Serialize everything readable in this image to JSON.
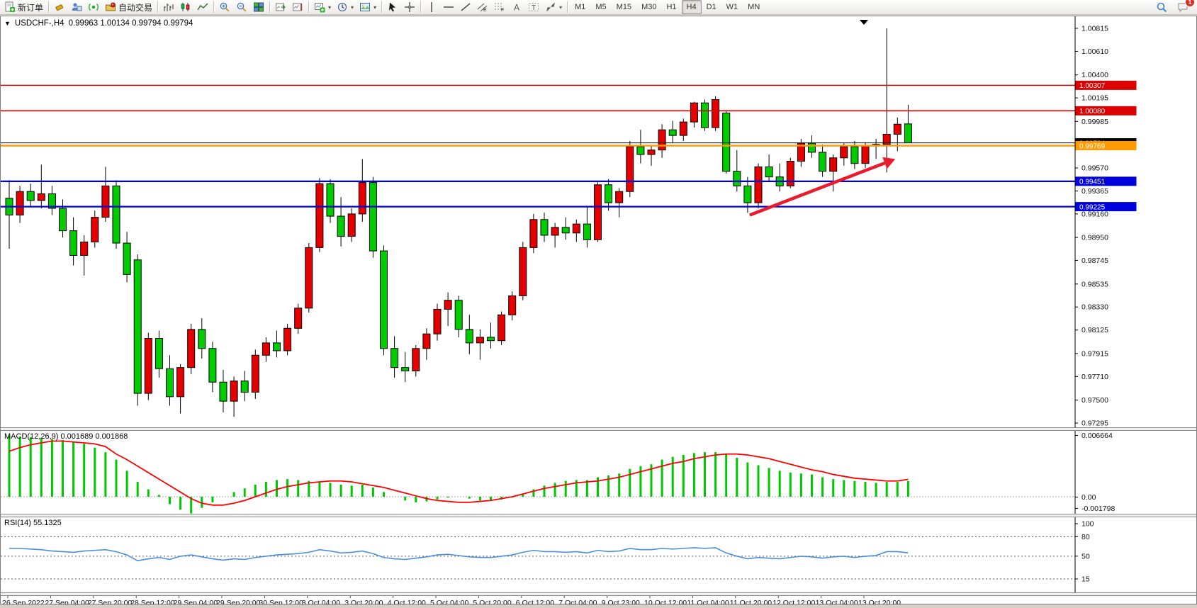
{
  "toolbar": {
    "new_order_label": "新订单",
    "auto_trade_label": "自动交易",
    "timeframes": [
      "M1",
      "M5",
      "M15",
      "M30",
      "H1",
      "H4",
      "D1",
      "W1",
      "MN"
    ],
    "active_timeframe": "H4",
    "chat_badge": "1",
    "groups": [
      {
        "items": [
          {
            "name": "new-order-button",
            "icon": "neworder",
            "label": "新订单"
          }
        ]
      },
      {
        "items": [
          {
            "name": "eraser-button",
            "icon": "eraser"
          },
          {
            "name": "market-watch-button",
            "icon": "person"
          },
          {
            "name": "signals-button",
            "icon": "signal"
          },
          {
            "name": "auto-trade-button",
            "icon": "autotrade",
            "label": "自动交易"
          }
        ]
      },
      {
        "items": [
          {
            "name": "bar-chart-mode-button",
            "icon": "bars"
          },
          {
            "name": "candle-chart-mode-button",
            "icon": "candles"
          },
          {
            "name": "line-chart-mode-button",
            "icon": "line"
          }
        ]
      },
      {
        "items": [
          {
            "name": "zoom-in-button",
            "icon": "zoomin"
          },
          {
            "name": "zoom-out-button",
            "icon": "zoomout"
          },
          {
            "name": "tile-windows-button",
            "icon": "tile"
          }
        ]
      },
      {
        "items": [
          {
            "name": "auto-scroll-button",
            "icon": "scrollend"
          },
          {
            "name": "chart-shift-button",
            "icon": "shift"
          }
        ]
      },
      {
        "items": [
          {
            "name": "new-chart-button",
            "icon": "newchart",
            "dropdown": true
          },
          {
            "name": "periods-button",
            "icon": "clock",
            "dropdown": true
          },
          {
            "name": "templates-button",
            "icon": "template",
            "dropdown": true
          }
        ]
      },
      {
        "items": [
          {
            "name": "cursor-tool-button",
            "icon": "cursor"
          },
          {
            "name": "crosshair-tool-button",
            "icon": "crosshair"
          }
        ]
      },
      {
        "items": [
          {
            "name": "vertical-line-tool",
            "icon": "vline"
          },
          {
            "name": "horizontal-line-tool",
            "icon": "hline"
          },
          {
            "name": "trendline-tool",
            "icon": "tline"
          },
          {
            "name": "equidistant-channel-tool",
            "icon": "channel"
          },
          {
            "name": "fibonacci-tool",
            "icon": "fibo"
          },
          {
            "name": "text-tool",
            "icon": "textA"
          },
          {
            "name": "text-label-tool",
            "icon": "labelT"
          },
          {
            "name": "arrows-tool",
            "icon": "arrows",
            "dropdown": true
          }
        ]
      }
    ]
  },
  "chart_window": {
    "symbol_period": "USDCHF-,H4",
    "ohlc_line": "0.99963 1.00134 0.99794 0.99794",
    "macd_label": "MACD(12,26,9)",
    "macd_value1": "0.001689",
    "macd_value2": "0.001868",
    "rsi_label": "RSI(14)",
    "rsi_value": "55.1325"
  },
  "colors": {
    "bull": "#e50000",
    "bear": "#00cc00",
    "wick": "#000000",
    "macd_hist": "#00c800",
    "macd_signal": "#ff0000",
    "rsi_line": "#4a8fdd",
    "line_red": "#dd0000",
    "line_blue": "#0000dd",
    "line_orange": "#ff9900",
    "line_black": "#000000",
    "arrow": "#e81c2d"
  },
  "chart_data": {
    "type": "candlestick",
    "title": "USDCHF-,H4",
    "symbol": "USDCHF-",
    "timeframe": "H4",
    "current_bar": {
      "open": 0.99963,
      "high": 1.00134,
      "low": 0.99794,
      "close": 0.99794
    },
    "ylim": [
      0.97295,
      1.00815
    ],
    "price_ticks": [
      1.00815,
      1.0061,
      1.004,
      1.00195,
      0.99985,
      0.9957,
      0.99365,
      0.9916,
      0.9895,
      0.98745,
      0.98535,
      0.9833,
      0.98125,
      0.97915,
      0.9771,
      0.975,
      0.97295
    ],
    "x_labels": [
      "26 Sep 2022",
      "27 Sep 04:00",
      "27 Sep 20:00",
      "28 Sep 12:00",
      "29 Sep 04:00",
      "29 Sep 20:00",
      "30 Sep 12:00",
      "3 Oct 04:00",
      "3 Oct 20:00",
      "4 Oct 12:00",
      "5 Oct 04:00",
      "5 Oct 20:00",
      "6 Oct 12:00",
      "7 Oct 04:00",
      "9 Oct 23:00",
      "10 Oct 12:00",
      "11 Oct 04:00",
      "11 Oct 20:00",
      "12 Oct 12:00",
      "13 Oct 04:00",
      "13 Oct 20:00"
    ],
    "hlines": [
      {
        "price": 1.00307,
        "color": "#dd0000",
        "width": 1.6,
        "badge": true,
        "label": "1.00307"
      },
      {
        "price": 1.0008,
        "color": "#dd0000",
        "width": 1.6,
        "badge": true,
        "label": "1.00080"
      },
      {
        "price": 0.99794,
        "color": "#000000",
        "width": 1.0,
        "badge": true,
        "label": "0.99794"
      },
      {
        "price": 0.99769,
        "color": "#ff9900",
        "width": 2.4,
        "badge": true,
        "label": "0.99769"
      },
      {
        "price": 0.99451,
        "color": "#0000dd",
        "width": 2.2,
        "badge": true,
        "label": "0.99451"
      },
      {
        "price": 0.99225,
        "color": "#0000dd",
        "width": 2.2,
        "badge": true,
        "label": "0.99225"
      }
    ],
    "trend_arrow": {
      "x1_bar": 69.2,
      "price1": 0.9915,
      "x2_bar": 82.8,
      "price2": 0.9965
    },
    "candles": [
      [
        0.993,
        0.9946,
        0.9885,
        0.9915
      ],
      [
        0.9915,
        0.9941,
        0.9908,
        0.9936
      ],
      [
        0.9936,
        0.9943,
        0.9923,
        0.9928
      ],
      [
        0.9928,
        0.996,
        0.9921,
        0.9934
      ],
      [
        0.9934,
        0.9941,
        0.9915,
        0.9921
      ],
      [
        0.9921,
        0.9929,
        0.9895,
        0.9901
      ],
      [
        0.9901,
        0.9913,
        0.987,
        0.9879
      ],
      [
        0.9879,
        0.9897,
        0.9861,
        0.9891
      ],
      [
        0.9891,
        0.9919,
        0.9886,
        0.9913
      ],
      [
        0.9913,
        0.9958,
        0.9909,
        0.9941
      ],
      [
        0.9941,
        0.9946,
        0.9885,
        0.989
      ],
      [
        0.989,
        0.99,
        0.9855,
        0.9862
      ],
      [
        0.9875,
        0.988,
        0.9745,
        0.9756
      ],
      [
        0.9756,
        0.981,
        0.975,
        0.9805
      ],
      [
        0.9805,
        0.9812,
        0.977,
        0.9778
      ],
      [
        0.9778,
        0.979,
        0.9745,
        0.9753
      ],
      [
        0.9753,
        0.9782,
        0.9738,
        0.9779
      ],
      [
        0.9779,
        0.9818,
        0.9773,
        0.9813
      ],
      [
        0.9813,
        0.9823,
        0.9787,
        0.9796
      ],
      [
        0.9796,
        0.9802,
        0.9757,
        0.9766
      ],
      [
        0.9766,
        0.9777,
        0.9739,
        0.9749
      ],
      [
        0.9749,
        0.9771,
        0.9735,
        0.9767
      ],
      [
        0.9767,
        0.9776,
        0.9749,
        0.9757
      ],
      [
        0.9757,
        0.9795,
        0.9751,
        0.979
      ],
      [
        0.979,
        0.9806,
        0.9784,
        0.9801
      ],
      [
        0.9801,
        0.9812,
        0.9788,
        0.9794
      ],
      [
        0.9794,
        0.9818,
        0.979,
        0.9814
      ],
      [
        0.9814,
        0.9836,
        0.9809,
        0.9832
      ],
      [
        0.9832,
        0.989,
        0.9828,
        0.9886
      ],
      [
        0.9886,
        0.9948,
        0.9882,
        0.9943
      ],
      [
        0.9943,
        0.9947,
        0.9908,
        0.9914
      ],
      [
        0.9914,
        0.9931,
        0.9887,
        0.9896
      ],
      [
        0.9896,
        0.9921,
        0.9891,
        0.9916
      ],
      [
        0.9916,
        0.9965,
        0.9909,
        0.9944
      ],
      [
        0.9944,
        0.9949,
        0.9877,
        0.9883
      ],
      [
        0.9883,
        0.9888,
        0.979,
        0.9796
      ],
      [
        0.9796,
        0.9807,
        0.977,
        0.9779
      ],
      [
        0.9779,
        0.9793,
        0.9766,
        0.9776
      ],
      [
        0.9776,
        0.9799,
        0.9771,
        0.9796
      ],
      [
        0.9796,
        0.9814,
        0.9786,
        0.9809
      ],
      [
        0.9809,
        0.9836,
        0.9803,
        0.9831
      ],
      [
        0.9831,
        0.9846,
        0.9816,
        0.9839
      ],
      [
        0.9839,
        0.9843,
        0.9806,
        0.9813
      ],
      [
        0.9813,
        0.9826,
        0.9791,
        0.9801
      ],
      [
        0.9801,
        0.9813,
        0.9786,
        0.9806
      ],
      [
        0.9806,
        0.9819,
        0.9796,
        0.9803
      ],
      [
        0.9803,
        0.9829,
        0.9799,
        0.9826
      ],
      [
        0.9826,
        0.9847,
        0.9821,
        0.9843
      ],
      [
        0.9843,
        0.9891,
        0.9839,
        0.9886
      ],
      [
        0.9886,
        0.9916,
        0.9881,
        0.9911
      ],
      [
        0.9911,
        0.9917,
        0.9891,
        0.9897
      ],
      [
        0.9897,
        0.9908,
        0.9886,
        0.9904
      ],
      [
        0.9904,
        0.9913,
        0.9893,
        0.9899
      ],
      [
        0.9899,
        0.9911,
        0.9891,
        0.9907
      ],
      [
        0.9907,
        0.9922,
        0.9886,
        0.9893
      ],
      [
        0.9893,
        0.9945,
        0.9891,
        0.9942
      ],
      [
        0.9942,
        0.9947,
        0.9919,
        0.9926
      ],
      [
        0.9926,
        0.9939,
        0.9913,
        0.9936
      ],
      [
        0.9936,
        0.9981,
        0.9931,
        0.9976
      ],
      [
        0.9976,
        0.9991,
        0.9961,
        0.9969
      ],
      [
        0.9969,
        0.9977,
        0.9959,
        0.9973
      ],
      [
        0.9973,
        0.9996,
        0.9966,
        0.9991
      ],
      [
        0.9991,
        0.9999,
        0.9979,
        0.9986
      ],
      [
        0.9986,
        1.0001,
        0.9981,
        0.9998
      ],
      [
        0.9998,
        1.0016,
        0.9993,
        1.0015
      ],
      [
        1.0015,
        1.0018,
        0.999,
        0.9993
      ],
      [
        0.9993,
        1.0021,
        0.999,
        1.0018
      ],
      [
        1.0006,
        1.0008,
        0.9952,
        0.9954
      ],
      [
        0.9954,
        0.9973,
        0.9936,
        0.9941
      ],
      [
        0.9941,
        0.9949,
        0.9917,
        0.9926
      ],
      [
        0.9926,
        0.9961,
        0.9921,
        0.9958
      ],
      [
        0.9958,
        0.9969,
        0.9945,
        0.9949
      ],
      [
        0.9949,
        0.9961,
        0.9936,
        0.9941
      ],
      [
        0.9941,
        0.9966,
        0.9939,
        0.9963
      ],
      [
        0.9963,
        0.9983,
        0.9958,
        0.9979
      ],
      [
        0.9979,
        0.9986,
        0.9966,
        0.9971
      ],
      [
        0.9971,
        0.9978,
        0.9949,
        0.9954
      ],
      [
        0.9954,
        0.9969,
        0.9936,
        0.9966
      ],
      [
        0.9966,
        0.9979,
        0.9959,
        0.9976
      ],
      [
        0.9976,
        0.9981,
        0.9956,
        0.9961
      ],
      [
        0.9961,
        0.998,
        0.9957,
        0.9977
      ],
      [
        0.9977,
        0.9983,
        0.9965,
        0.9978
      ],
      [
        0.9978,
        1.00815,
        0.9953,
        0.9987
      ],
      [
        0.9987,
        1.0002,
        0.9972,
        0.9996
      ],
      [
        0.99963,
        1.00134,
        0.99794,
        0.99794
      ]
    ],
    "indicators": {
      "macd": {
        "name": "MACD(12,26,9)",
        "value_main": 0.001689,
        "value_signal": 0.001868,
        "axis_max": 0.006664,
        "axis_zero": "0.00",
        "axis_min": -0.001798,
        "histogram": [
          0.0066,
          0.0065,
          0.0064,
          0.0063,
          0.0062,
          0.0061,
          0.0059,
          0.0057,
          0.0053,
          0.0048,
          0.004,
          0.0028,
          0.0016,
          0.0008,
          0.0002,
          -0.0008,
          -0.0014,
          -0.0018,
          -0.0012,
          -0.0006,
          0.0,
          0.0005,
          0.0009,
          0.0013,
          0.0016,
          0.0018,
          0.0019,
          0.0018,
          0.0017,
          0.0016,
          0.0015,
          0.0013,
          0.0012,
          0.0013,
          0.001,
          0.0005,
          0.0,
          -0.0004,
          -0.0006,
          -0.0005,
          -0.0003,
          -0.0001,
          0.0,
          -0.0002,
          -0.0004,
          -0.0004,
          -0.0003,
          -0.0001,
          0.0003,
          0.0008,
          0.0012,
          0.0015,
          0.0017,
          0.0018,
          0.0018,
          0.0021,
          0.0023,
          0.0025,
          0.003,
          0.0033,
          0.0035,
          0.004,
          0.0043,
          0.0045,
          0.0047,
          0.0048,
          0.0048,
          0.0046,
          0.0042,
          0.0037,
          0.0034,
          0.0031,
          0.0028,
          0.0026,
          0.0025,
          0.0024,
          0.0021,
          0.0019,
          0.0018,
          0.0017,
          0.0016,
          0.0015,
          0.0016,
          0.0016,
          0.001689
        ],
        "signal": [
          0.0049,
          0.0053,
          0.0056,
          0.0058,
          0.006,
          0.006,
          0.0059,
          0.0058,
          0.0057,
          0.0054,
          0.0046,
          0.004,
          0.0033,
          0.0026,
          0.0019,
          0.0012,
          0.0005,
          -0.0002,
          -0.0007,
          -0.0009,
          -0.0009,
          -0.0007,
          -0.0004,
          0.0,
          0.0004,
          0.0008,
          0.0011,
          0.0013,
          0.0015,
          0.0016,
          0.0017,
          0.0017,
          0.0016,
          0.0014,
          0.0012,
          0.001,
          0.0007,
          0.0004,
          0.0001,
          -0.0002,
          -0.0004,
          -0.0005,
          -0.0006,
          -0.0006,
          -0.0005,
          -0.0004,
          -0.0002,
          0.0,
          0.0003,
          0.0006,
          0.0009,
          0.0011,
          0.0013,
          0.0015,
          0.0016,
          0.0017,
          0.0019,
          0.0021,
          0.0024,
          0.0027,
          0.003,
          0.0033,
          0.0036,
          0.0038,
          0.0041,
          0.0043,
          0.0045,
          0.0046,
          0.0046,
          0.0045,
          0.0043,
          0.0041,
          0.0038,
          0.0035,
          0.0032,
          0.0029,
          0.0027,
          0.0024,
          0.0022,
          0.002,
          0.0019,
          0.0018,
          0.0017,
          0.0017,
          0.001868
        ]
      },
      "rsi": {
        "name": "RSI(14)",
        "value": 55.1325,
        "axis_labels": [
          100,
          80,
          50,
          15
        ],
        "levels": [
          80,
          50,
          15
        ],
        "values": [
          62,
          62,
          61,
          60,
          58,
          57,
          56,
          58,
          59,
          60,
          57,
          52,
          43,
          46,
          48,
          45,
          50,
          52,
          49,
          46,
          44,
          46,
          45,
          48,
          50,
          52,
          53,
          54,
          56,
          60,
          58,
          55,
          56,
          58,
          54,
          48,
          46,
          45,
          47,
          49,
          52,
          53,
          51,
          49,
          48,
          48,
          50,
          52,
          56,
          59,
          57,
          57,
          56,
          57,
          55,
          59,
          57,
          58,
          62,
          60,
          60,
          62,
          61,
          62,
          63,
          62,
          63,
          55,
          50,
          46,
          48,
          47,
          46,
          48,
          50,
          49,
          47,
          49,
          50,
          48,
          50,
          51,
          57,
          57,
          55.1325
        ]
      }
    }
  }
}
